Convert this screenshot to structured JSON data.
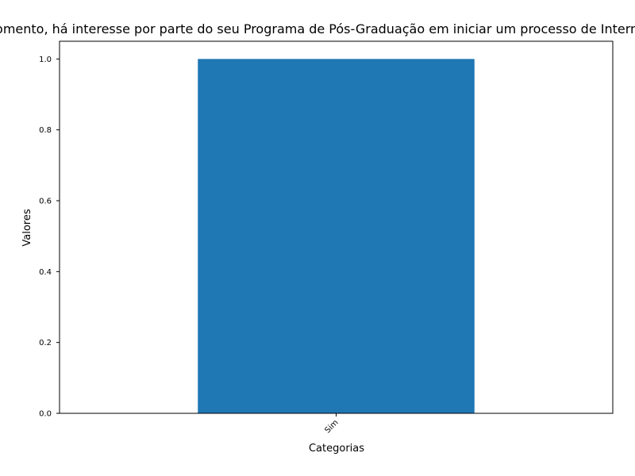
{
  "chart_data": {
    "type": "bar",
    "title": "Neste momento, há interesse por parte do seu Programa de Pós-Graduação em iniciar um processo de Internacionalização?",
    "xlabel": "Categorias",
    "ylabel": "Valores",
    "categories": [
      "Sim"
    ],
    "values": [
      1
    ],
    "ylim": [
      0,
      1.05
    ],
    "yticks": [
      0.0,
      0.2,
      0.4,
      0.6,
      0.8,
      1.0
    ],
    "ytick_labels": [
      "0.0",
      "0.2",
      "0.4",
      "0.6",
      "0.8",
      "1.0"
    ],
    "xtick_rotation": 45,
    "grid": false,
    "colors": {
      "bar": "#1f77b4",
      "axes": "#000000",
      "background": "#ffffff"
    }
  }
}
